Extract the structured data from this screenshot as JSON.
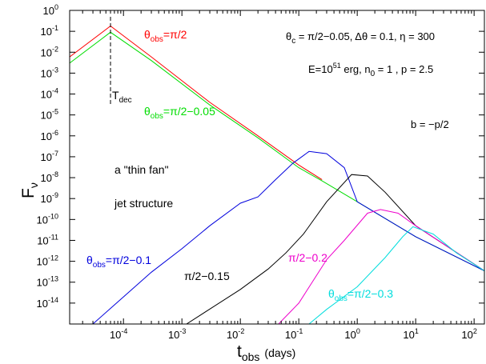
{
  "chart_data": {
    "type": "line",
    "xscale": "log",
    "yscale": "log",
    "xlim": [
      1.2e-05,
      150
    ],
    "ylim": [
      1e-15,
      1
    ],
    "grid": false,
    "x_tick_exponents": [
      "-4",
      "-3",
      "-2",
      "-1",
      "0",
      "1",
      "2"
    ],
    "y_tick_exponents": [
      "0",
      "-1",
      "-2",
      "-3",
      "-4",
      "-5",
      "-6",
      "-7",
      "-8",
      "-9",
      "-10",
      "-11",
      "-12",
      "-13",
      "-14"
    ],
    "xlabel": {
      "main": "t",
      "sub": "obs",
      "unit": "(days)"
    },
    "ylabel": {
      "main": "F",
      "sub": "ν"
    },
    "vline": {
      "x": 6e-05,
      "label_main": "T",
      "label_sub": "dec"
    },
    "series": [
      {
        "color": "#ff0000",
        "x": [
          1.2e-05,
          6e-05,
          0.0003,
          0.003,
          0.02,
          0.1,
          0.25
        ],
        "y": [
          0.006,
          0.18,
          0.006,
          4e-05,
          1e-06,
          4e-08,
          8e-09
        ]
      },
      {
        "color": "#00dd00",
        "x": [
          1.2e-05,
          6e-05,
          0.0003,
          0.003,
          0.02,
          0.1,
          0.25,
          1,
          10,
          150
        ],
        "y": [
          0.003,
          0.09,
          0.004,
          3e-05,
          8e-07,
          3e-08,
          7e-09,
          7e-10,
          1.5e-11,
          3.5e-13
        ]
      },
      {
        "color": "#0000dd",
        "x": [
          3e-05,
          0.0003,
          0.001,
          0.003,
          0.01,
          0.02,
          0.04,
          0.08,
          0.15,
          0.3,
          0.6,
          1,
          10,
          150
        ],
        "y": [
          1e-15,
          3e-13,
          4e-12,
          5e-11,
          6e-10,
          1.2e-09,
          8e-09,
          5e-08,
          1.8e-07,
          1.4e-07,
          3e-08,
          7e-10,
          1.5e-11,
          3.5e-13
        ]
      },
      {
        "color": "#000000",
        "x": [
          0.0012,
          0.01,
          0.03,
          0.06,
          0.12,
          0.3,
          0.8,
          1.5,
          3,
          10,
          150
        ],
        "y": [
          1e-15,
          4.5e-14,
          4.3e-13,
          2.5e-12,
          2e-11,
          7e-10,
          1.4e-08,
          1.2e-08,
          2e-09,
          5e-11,
          3.5e-13
        ]
      },
      {
        "color": "#ee00cc",
        "x": [
          0.045,
          0.1,
          0.3,
          0.6,
          1.5,
          2.5,
          5,
          10,
          150
        ],
        "y": [
          1e-15,
          1e-14,
          1.2e-12,
          1e-11,
          2e-10,
          3e-10,
          2e-10,
          5e-11,
          3.5e-13
        ]
      },
      {
        "color": "#00dddd",
        "x": [
          0.15,
          0.3,
          1,
          3,
          6,
          9,
          20,
          50,
          150
        ],
        "y": [
          1e-15,
          5e-15,
          6e-14,
          1.5e-12,
          1.5e-11,
          4.5e-11,
          2e-11,
          2.5e-12,
          3.5e-13
        ]
      }
    ]
  },
  "annotations": {
    "theta_pi2": {
      "main": "θ",
      "sub": "obs",
      "rest": "=π/2",
      "color": "#ff0000"
    },
    "theta_pi2_005": {
      "main": "θ",
      "sub": "obs",
      "rest": "=π/2−0.05",
      "color": "#00dd00"
    },
    "theta_pi2_01": {
      "main": "θ",
      "sub": "obs",
      "rest": "=π/2−0.1",
      "color": "#0000dd"
    },
    "label_015": {
      "text": "π/2−0.15",
      "color": "#000000"
    },
    "label_02": {
      "text": "π/2−0.2",
      "color": "#ee00cc"
    },
    "theta_pi2_03": {
      "main": "θ",
      "sub": "obs",
      "rest": "=π/2−0.3",
      "color": "#00dddd"
    },
    "params_line1": {
      "t1": "θ",
      "sub": "c",
      "t2": " = π/2−0.05, Δθ = 0.1, η = 300"
    },
    "params_line2": {
      "t1": "E=10",
      "sup": "51",
      "t2": " erg, n",
      "sub": "0",
      "t3": " = 1 , p = 2.5"
    },
    "params_line3": "b = −p/2",
    "jet_line1": "a \"thin fan\"",
    "jet_line2": "jet structure"
  }
}
